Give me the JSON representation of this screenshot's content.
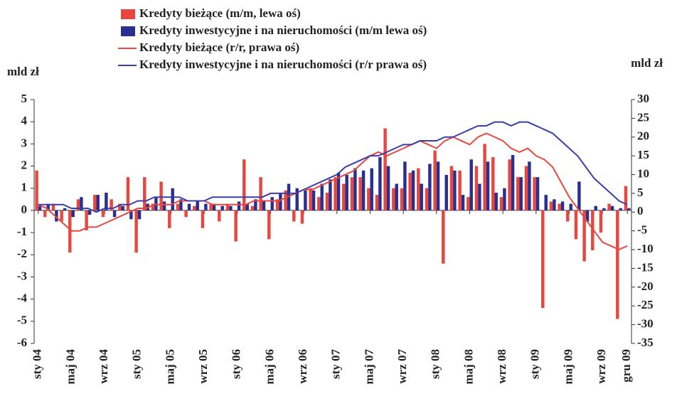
{
  "chart_data": {
    "type": "bar_line",
    "ylabel": "mld zł",
    "y2label": "mld zł",
    "categories": [
      "sty 04",
      null,
      null,
      null,
      "maj 04",
      null,
      null,
      null,
      "wrz 04",
      null,
      null,
      null,
      "sty 05",
      null,
      null,
      null,
      "maj 05",
      null,
      null,
      null,
      "wrz 05",
      null,
      null,
      null,
      "sty 06",
      null,
      null,
      null,
      "maj 06",
      null,
      null,
      null,
      "wrz 06",
      null,
      null,
      null,
      "sty 07",
      null,
      null,
      null,
      "maj 07",
      null,
      null,
      null,
      "wrz 07",
      null,
      null,
      null,
      "sty 08",
      null,
      null,
      null,
      "maj 08",
      null,
      null,
      null,
      "wrz 08",
      null,
      null,
      null,
      "sty 09",
      null,
      null,
      null,
      "maj 09",
      null,
      null,
      null,
      "wrz 09",
      null,
      null,
      "gru 09"
    ],
    "ylim": [
      -6,
      5
    ],
    "yticks": [
      5,
      4,
      3,
      2,
      1,
      0,
      -1,
      -2,
      -3,
      -4,
      -5,
      -6
    ],
    "y2lim": [
      -35,
      30
    ],
    "y2ticks": [
      30,
      25,
      20,
      15,
      10,
      5,
      0,
      -5,
      -10,
      -15,
      -20,
      -25,
      -30,
      -35
    ],
    "series": [
      {
        "name": "Kredyty bieżące (m/m, lewa oś)",
        "kind": "bar",
        "color": "#e8473f",
        "values": [
          1.8,
          -0.3,
          0.3,
          -0.5,
          -1.9,
          0.5,
          -0.9,
          0.7,
          -0.3,
          0.5,
          0.3,
          1.5,
          -1.9,
          1.5,
          0.3,
          1.3,
          -0.8,
          0.3,
          -0.3,
          0.2,
          -0.8,
          0.3,
          -0.5,
          0.3,
          -1.4,
          2.3,
          0.2,
          1.5,
          -1.3,
          0.5,
          0.9,
          -0.5,
          -0.6,
          1.0,
          0.6,
          0.8,
          1.5,
          1.2,
          1.5,
          1.5,
          1.0,
          0.7,
          3.7,
          1.0,
          1.0,
          1.7,
          1.9,
          1.0,
          2.7,
          -2.4,
          2.0,
          1.8,
          0.6,
          2.0,
          3.0,
          2.4,
          0.6,
          2.3,
          1.5,
          2.0,
          1.5,
          -4.4,
          0.4,
          0.3,
          -0.5,
          -1.3,
          -2.3,
          -1.8,
          -1.0,
          0.3,
          -4.9,
          1.1
        ]
      },
      {
        "name": "Kredyty inwestycyjne i na nieruchomości (m/m lewa oś)",
        "kind": "bar",
        "color": "#2a2f8f",
        "values": [
          0.2,
          0.3,
          -0.5,
          0.1,
          -0.3,
          0.6,
          -0.2,
          0.7,
          0.8,
          -0.3,
          0.2,
          -0.4,
          -0.4,
          0.3,
          0.6,
          0.4,
          1.0,
          0.5,
          0.3,
          0.4,
          0.3,
          0.3,
          0.2,
          0.2,
          0.4,
          0.3,
          0.5,
          0.4,
          0.6,
          0.8,
          1.2,
          1.0,
          0.9,
          0.9,
          1.2,
          1.4,
          1.7,
          1.6,
          1.9,
          1.8,
          1.9,
          2.4,
          2.0,
          1.2,
          2.2,
          1.8,
          1.2,
          2.1,
          2.2,
          1.6,
          1.8,
          0.7,
          2.3,
          1.2,
          2.2,
          0.8,
          1.0,
          2.5,
          1.5,
          2.2,
          1.5,
          0.7,
          0.5,
          0.4,
          0.3,
          1.3,
          -0.5,
          0.2,
          0.1,
          0.2,
          0.1,
          0.1
        ]
      },
      {
        "name": "Kredyty bieżące (r/r, prawa oś)",
        "kind": "line",
        "axis": "y2",
        "color": "#e8473f",
        "values": [
          2,
          1,
          -1,
          -3,
          -5,
          -5,
          -4,
          -4,
          -3,
          -2,
          -1,
          0,
          1,
          1,
          2,
          2,
          2,
          3,
          3,
          3,
          3,
          2,
          2,
          2,
          2,
          2,
          3,
          3,
          3,
          3,
          4,
          5,
          6,
          6,
          7,
          8,
          9,
          10,
          11,
          13,
          15,
          16,
          15,
          16,
          17,
          18,
          19,
          18,
          17,
          19,
          20,
          19,
          18,
          20,
          21,
          20,
          19,
          17,
          16,
          17,
          15,
          14,
          12,
          8,
          4,
          1,
          -2,
          -5,
          -8,
          -9,
          -10,
          -9
        ]
      },
      {
        "name": "Kredyty inwestycyjne i na nieruchomości (r/r prawa oś)",
        "kind": "line",
        "axis": "y2",
        "color": "#3a3ea8",
        "values": [
          2,
          2,
          2,
          2,
          1,
          1,
          1,
          0,
          1,
          1,
          2,
          2,
          3,
          3,
          4,
          4,
          4,
          4,
          3,
          3,
          3,
          4,
          4,
          4,
          4,
          4,
          4,
          4,
          5,
          5,
          5,
          5,
          6,
          7,
          8,
          9,
          10,
          12,
          13,
          14,
          15,
          15,
          16,
          17,
          18,
          18,
          19,
          19,
          19,
          20,
          20,
          21,
          22,
          23,
          23,
          24,
          24,
          23,
          24,
          24,
          23,
          22,
          21,
          19,
          17,
          15,
          12,
          9,
          7,
          5,
          3,
          2
        ]
      }
    ]
  }
}
